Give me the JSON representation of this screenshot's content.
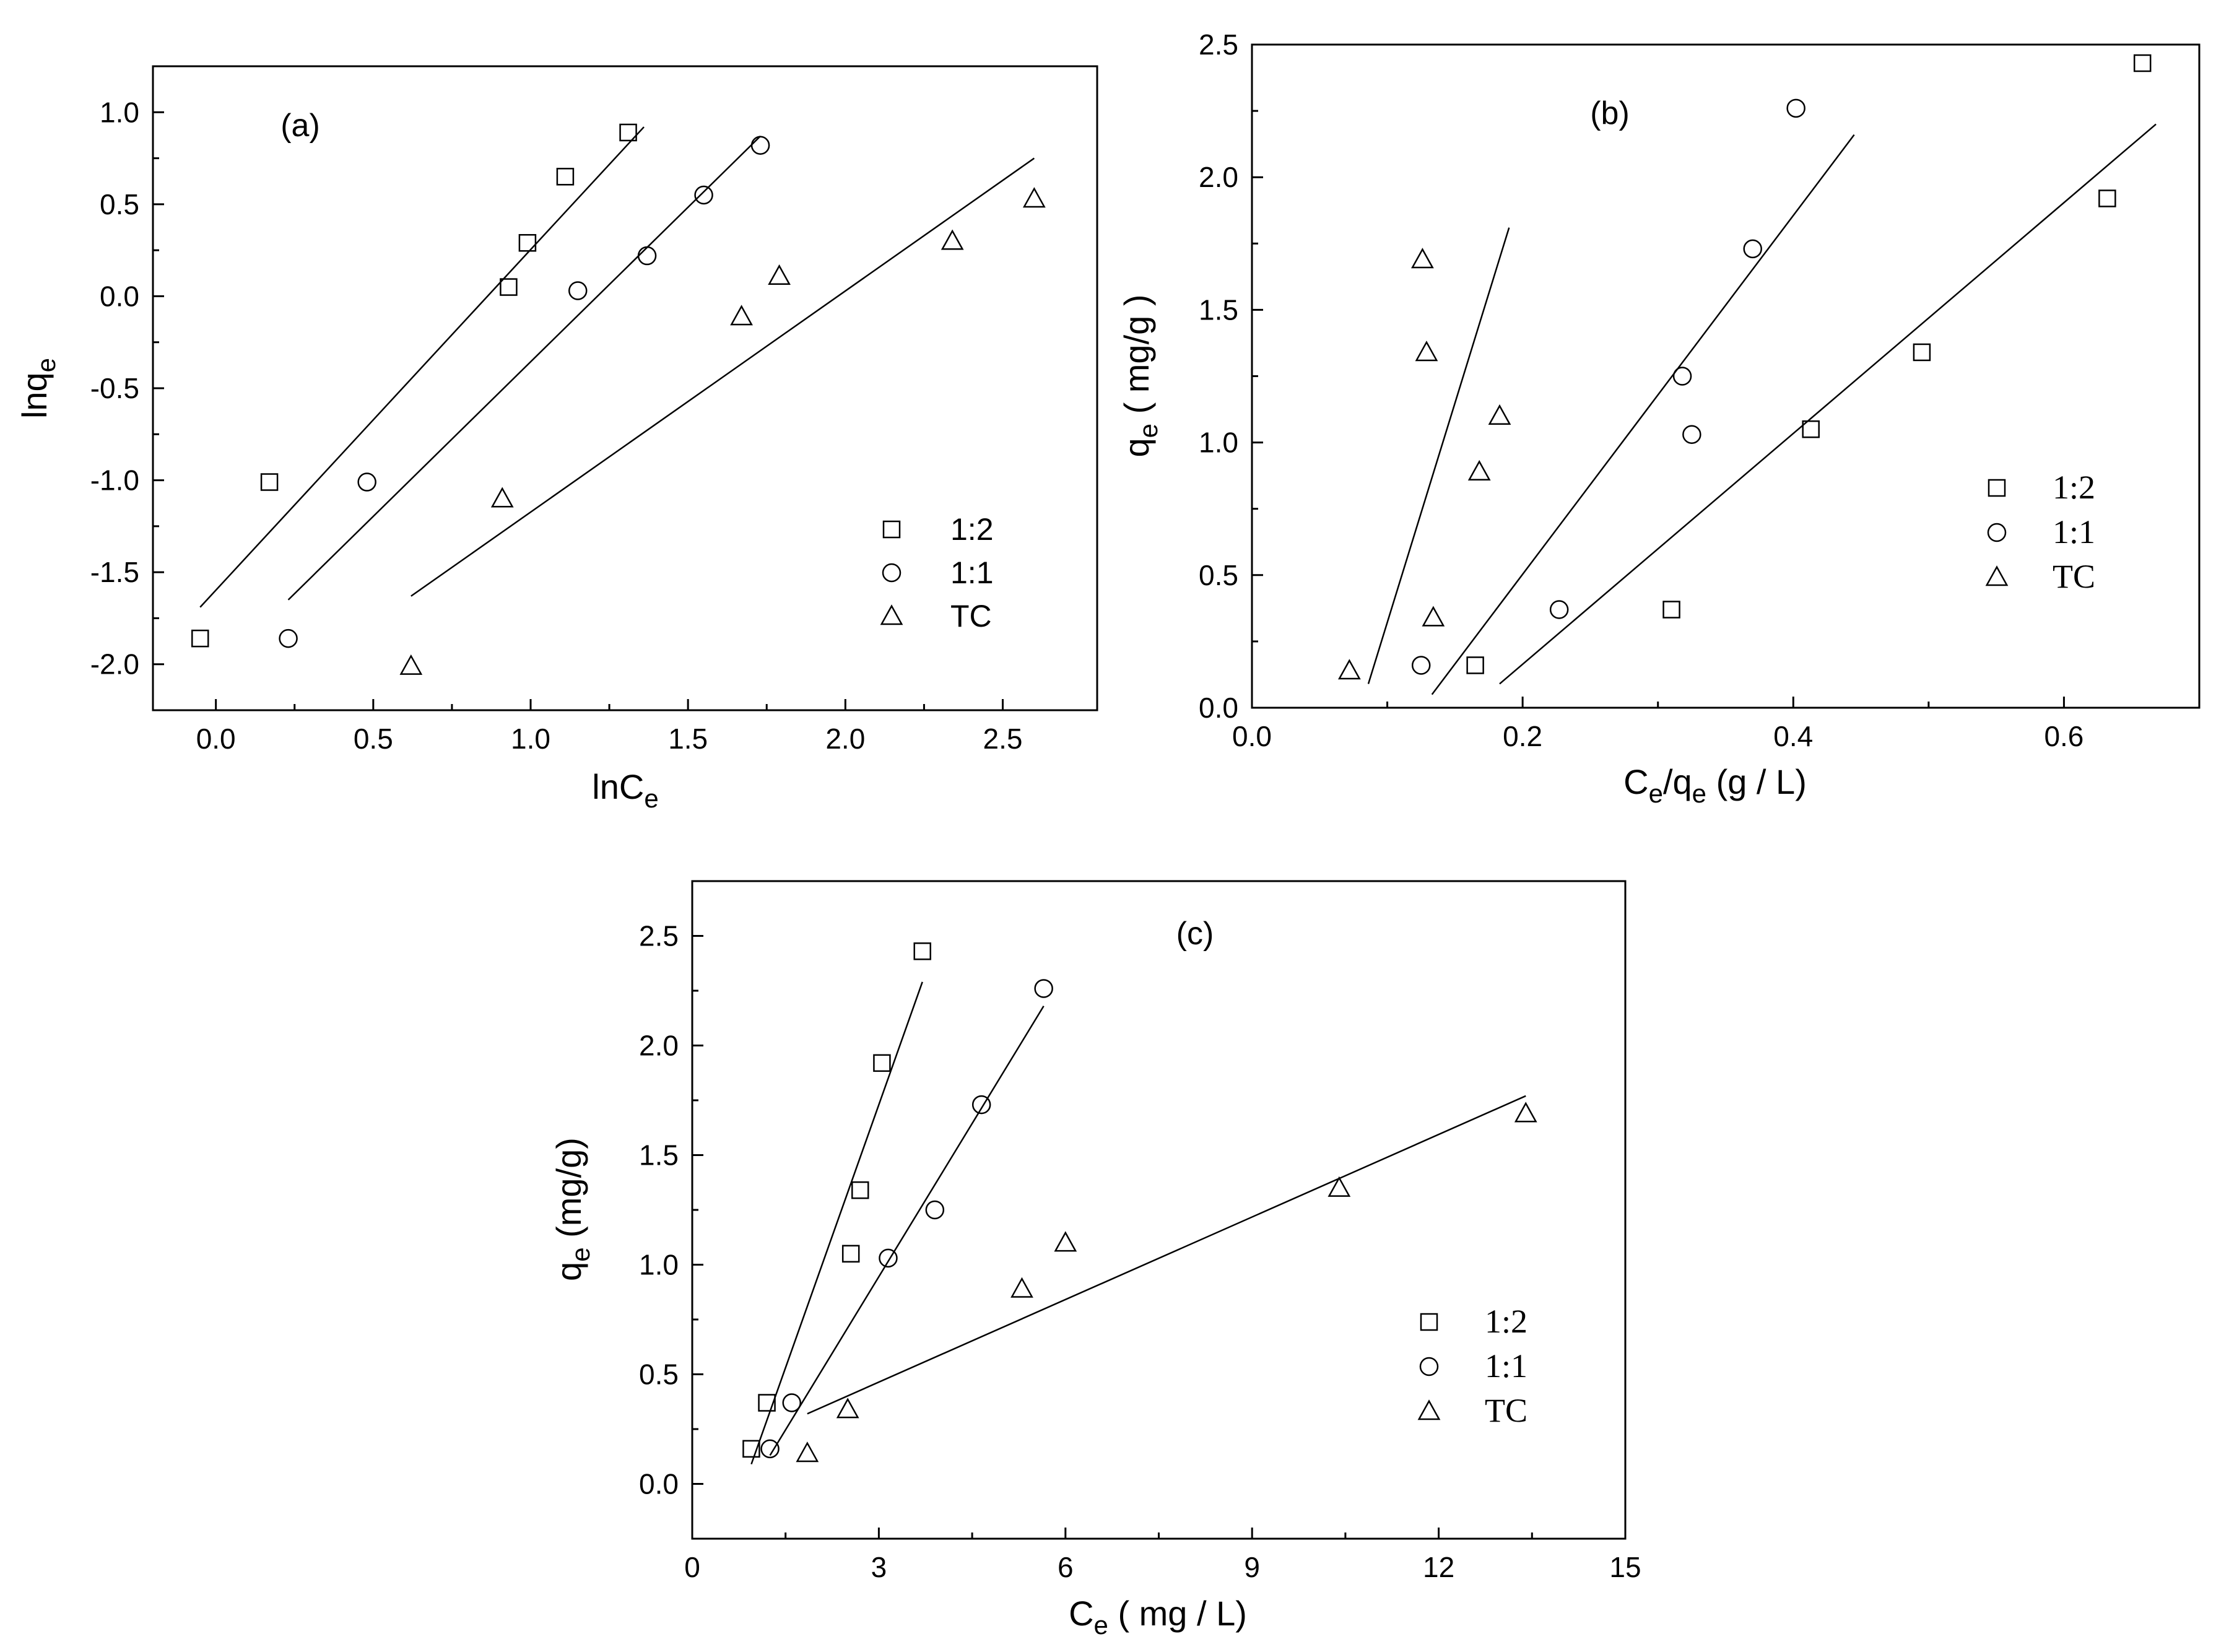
{
  "chart_data": [
    {
      "id": "a",
      "type": "scatter",
      "panel_label": "(a)",
      "xlabel_main": "lnC",
      "xlabel_sub": "e",
      "ylabel_main": "lnq",
      "ylabel_sub": "e",
      "ylabel_suffix": "",
      "xlabel_suffix": "",
      "xlim": [
        -0.2,
        2.8
      ],
      "ylim": [
        -2.25,
        1.25
      ],
      "xticks": [
        0.0,
        0.5,
        1.0,
        1.5,
        2.0,
        2.5
      ],
      "xtick_labels": [
        "0.0",
        "0.5",
        "1.0",
        "1.5",
        "2.0",
        "2.5"
      ],
      "yticks": [
        -2.0,
        -1.5,
        -1.0,
        -0.5,
        0.0,
        0.5,
        1.0
      ],
      "ytick_labels": [
        "-2.0",
        "-1.5",
        "-1.0",
        "-0.5",
        "0.0",
        "0.5",
        "1.0"
      ],
      "legend_position": "bottom-right",
      "legend_font": "sans",
      "series": [
        {
          "name": "1:2",
          "marker": "square",
          "x": [
            -0.05,
            0.17,
            0.93,
            0.99,
            1.11,
            1.31
          ],
          "y": [
            -1.86,
            -1.01,
            0.05,
            0.29,
            0.65,
            0.89
          ],
          "fit": [
            [
              -0.05,
              -1.69
            ],
            [
              1.36,
              0.92
            ]
          ]
        },
        {
          "name": "1:1",
          "marker": "circle",
          "x": [
            0.23,
            0.48,
            1.15,
            1.37,
            1.55,
            1.73
          ],
          "y": [
            -1.86,
            -1.01,
            0.03,
            0.22,
            0.55,
            0.82
          ],
          "fit": [
            [
              0.23,
              -1.65
            ],
            [
              1.73,
              0.87
            ]
          ]
        },
        {
          "name": "TC",
          "marker": "triangle",
          "x": [
            0.62,
            0.91,
            1.67,
            1.79,
            2.34,
            2.6
          ],
          "y": [
            -2.01,
            -1.1,
            -0.11,
            0.11,
            0.3,
            0.53
          ],
          "fit": [
            [
              0.62,
              -1.63
            ],
            [
              2.6,
              0.75
            ]
          ]
        }
      ]
    },
    {
      "id": "b",
      "type": "scatter",
      "panel_label": "(b)",
      "xlabel_main": "C",
      "xlabel_sub": "e",
      "xlabel_suffix": "/q",
      "xlabel_sub2": "e",
      "xlabel_suffix2": " (g / L)",
      "ylabel_main": "q",
      "ylabel_sub": "e",
      "ylabel_suffix": " ( mg/g )",
      "xlim": [
        0.0,
        0.7
      ],
      "ylim": [
        0.0,
        2.5
      ],
      "xticks": [
        0.0,
        0.2,
        0.4,
        0.6
      ],
      "xtick_labels": [
        "0.0",
        "0.2",
        "0.4",
        "0.6"
      ],
      "yticks": [
        0.0,
        0.5,
        1.0,
        1.5,
        2.0,
        2.5
      ],
      "ytick_labels": [
        "0.0",
        "0.5",
        "1.0",
        "1.5",
        "2.0",
        "2.5"
      ],
      "legend_position": "middle-right",
      "legend_font": "serif",
      "series": [
        {
          "name": "1:2",
          "marker": "square",
          "x": [
            0.165,
            0.31,
            0.413,
            0.495,
            0.632,
            0.658
          ],
          "y": [
            0.16,
            0.37,
            1.05,
            1.34,
            1.92,
            2.43
          ],
          "fit": [
            [
              0.183,
              0.09
            ],
            [
              0.668,
              2.2
            ]
          ]
        },
        {
          "name": "1:1",
          "marker": "circle",
          "x": [
            0.125,
            0.227,
            0.318,
            0.325,
            0.37,
            0.402
          ],
          "y": [
            0.16,
            0.37,
            1.25,
            1.03,
            1.73,
            2.26
          ],
          "fit": [
            [
              0.133,
              0.05
            ],
            [
              0.445,
              2.16
            ]
          ]
        },
        {
          "name": "TC",
          "marker": "triangle",
          "x": [
            0.072,
            0.126,
            0.129,
            0.134,
            0.168,
            0.183
          ],
          "y": [
            0.14,
            1.69,
            1.34,
            0.34,
            0.89,
            1.1
          ],
          "fit": [
            [
              0.086,
              0.09
            ],
            [
              0.19,
              1.81
            ]
          ]
        }
      ]
    },
    {
      "id": "c",
      "type": "scatter",
      "panel_label": "(c)",
      "xlabel_main": "C",
      "xlabel_sub": "e",
      "xlabel_suffix": " ( mg / L)",
      "ylabel_main": "q",
      "ylabel_sub": "e",
      "ylabel_suffix": " (mg/g)",
      "xlim": [
        0,
        15
      ],
      "ylim": [
        -0.25,
        2.75
      ],
      "xticks": [
        0,
        3,
        6,
        9,
        12,
        15
      ],
      "xtick_labels": [
        "0",
        "3",
        "6",
        "9",
        "12",
        "15"
      ],
      "yticks": [
        0.0,
        0.5,
        1.0,
        1.5,
        2.0,
        2.5
      ],
      "ytick_labels": [
        "0.0",
        "0.5",
        "1.0",
        "1.5",
        "2.0",
        "2.5"
      ],
      "legend_position": "bottom-right",
      "legend_font": "serif",
      "series": [
        {
          "name": "1:2",
          "marker": "square",
          "x": [
            0.95,
            1.2,
            2.55,
            2.7,
            3.05,
            3.7
          ],
          "y": [
            0.16,
            0.37,
            1.05,
            1.34,
            1.92,
            2.43
          ],
          "fit": [
            [
              0.95,
              0.09
            ],
            [
              3.7,
              2.29
            ]
          ]
        },
        {
          "name": "1:1",
          "marker": "circle",
          "x": [
            1.25,
            1.6,
            3.15,
            3.9,
            4.65,
            5.65
          ],
          "y": [
            0.16,
            0.37,
            1.03,
            1.25,
            1.73,
            2.26
          ],
          "fit": [
            [
              1.25,
              0.13
            ],
            [
              5.65,
              2.18
            ]
          ]
        },
        {
          "name": "TC",
          "marker": "triangle",
          "x": [
            1.85,
            2.5,
            5.3,
            6.0,
            10.4,
            13.4
          ],
          "y": [
            0.14,
            0.34,
            0.89,
            1.1,
            1.35,
            1.69
          ],
          "fit": [
            [
              1.85,
              0.32
            ],
            [
              13.4,
              1.77
            ]
          ]
        }
      ]
    }
  ]
}
